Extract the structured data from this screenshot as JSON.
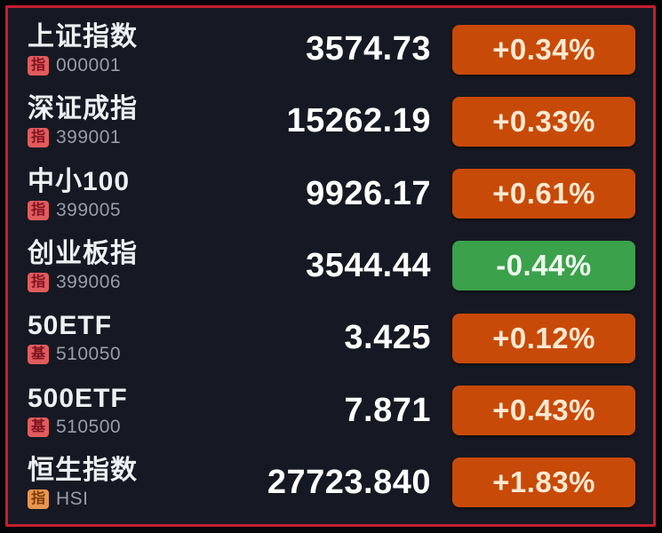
{
  "colors": {
    "background": "#161923",
    "frame_border": "#c41f2f",
    "up_badge": "#c84a08",
    "down_badge": "#3ba14b",
    "tag_red": "#e25b5e",
    "tag_orange": "#e9964f"
  },
  "rows": [
    {
      "name": "上证指数",
      "tag": "指",
      "tag_color": "red",
      "code": "000001",
      "value": "3574.73",
      "change": "+0.34%",
      "direction": "up"
    },
    {
      "name": "深证成指",
      "tag": "指",
      "tag_color": "red",
      "code": "399001",
      "value": "15262.19",
      "change": "+0.33%",
      "direction": "up"
    },
    {
      "name": "中小100",
      "tag": "指",
      "tag_color": "red",
      "code": "399005",
      "value": "9926.17",
      "change": "+0.61%",
      "direction": "up"
    },
    {
      "name": "创业板指",
      "tag": "指",
      "tag_color": "red",
      "code": "399006",
      "value": "3544.44",
      "change": "-0.44%",
      "direction": "down"
    },
    {
      "name": "50ETF",
      "tag": "基",
      "tag_color": "red",
      "code": "510050",
      "value": "3.425",
      "change": "+0.12%",
      "direction": "up"
    },
    {
      "name": "500ETF",
      "tag": "基",
      "tag_color": "red",
      "code": "510500",
      "value": "7.871",
      "change": "+0.43%",
      "direction": "up"
    },
    {
      "name": "恒生指数",
      "tag": "指",
      "tag_color": "orange",
      "code": "HSI",
      "value": "27723.840",
      "change": "+1.83%",
      "direction": "up"
    }
  ]
}
